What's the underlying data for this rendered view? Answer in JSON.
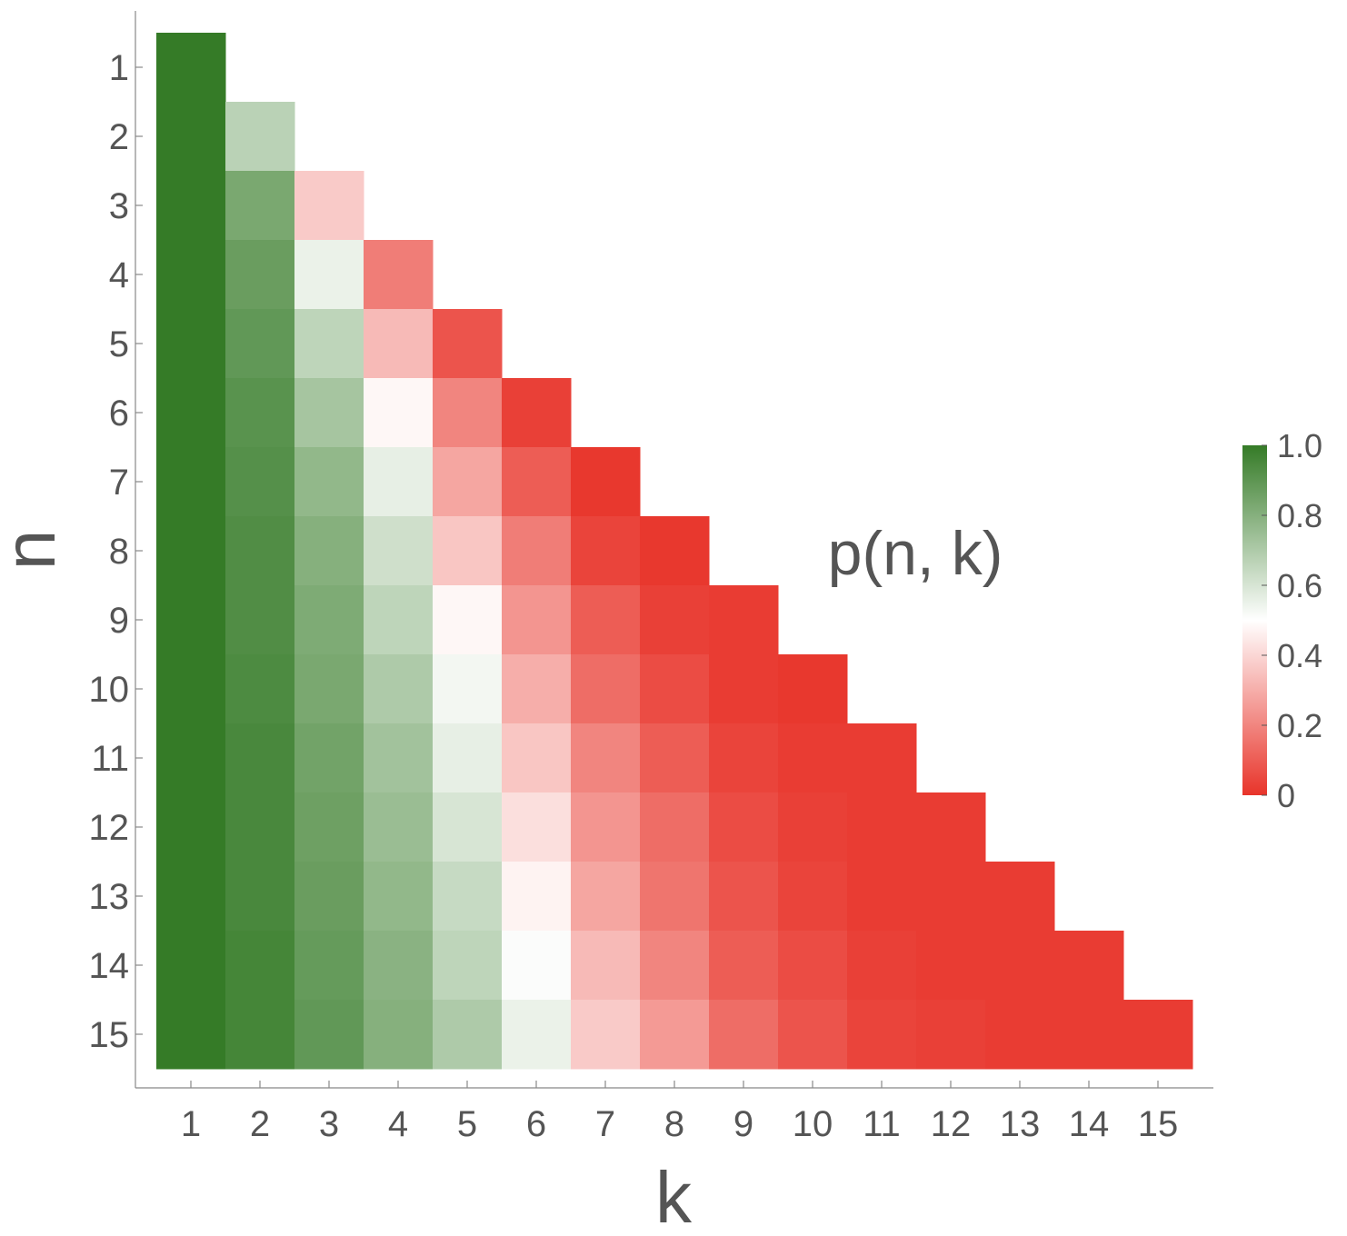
{
  "chart_data": {
    "type": "heatmap",
    "title": "",
    "xlabel": "k",
    "ylabel": "n",
    "annotation": "p(n, k)",
    "x": [
      1,
      2,
      3,
      4,
      5,
      6,
      7,
      8,
      9,
      10,
      11,
      12,
      13,
      14,
      15
    ],
    "y": [
      1,
      2,
      3,
      4,
      5,
      6,
      7,
      8,
      9,
      10,
      11,
      12,
      13,
      14,
      15
    ],
    "x_tick_labels": [
      "1",
      "2",
      "3",
      "4",
      "5",
      "6",
      "7",
      "8",
      "9",
      "10",
      "11",
      "12",
      "13",
      "14",
      "15"
    ],
    "y_tick_labels": [
      "1",
      "2",
      "3",
      "4",
      "5",
      "6",
      "7",
      "8",
      "9",
      "10",
      "11",
      "12",
      "13",
      "14",
      "15"
    ],
    "values": [
      [
        1.0
      ],
      [
        1.0,
        0.67
      ],
      [
        1.0,
        0.83,
        0.37
      ],
      [
        1.0,
        0.87,
        0.55,
        0.18
      ],
      [
        1.0,
        0.89,
        0.66,
        0.33,
        0.08
      ],
      [
        1.0,
        0.91,
        0.72,
        0.48,
        0.2,
        0.03
      ],
      [
        1.0,
        0.92,
        0.77,
        0.56,
        0.28,
        0.1,
        0.01
      ],
      [
        1.0,
        0.93,
        0.8,
        0.62,
        0.36,
        0.18,
        0.04,
        0.01
      ],
      [
        1.0,
        0.93,
        0.82,
        0.66,
        0.48,
        0.24,
        0.1,
        0.03,
        0.02
      ],
      [
        1.0,
        0.94,
        0.83,
        0.7,
        0.53,
        0.3,
        0.14,
        0.06,
        0.02,
        0.01
      ],
      [
        1.0,
        0.95,
        0.85,
        0.73,
        0.56,
        0.36,
        0.2,
        0.1,
        0.04,
        0.02,
        0.02
      ],
      [
        1.0,
        0.95,
        0.86,
        0.75,
        0.6,
        0.42,
        0.24,
        0.14,
        0.06,
        0.03,
        0.02,
        0.02
      ],
      [
        1.0,
        0.95,
        0.87,
        0.77,
        0.64,
        0.47,
        0.28,
        0.16,
        0.08,
        0.04,
        0.02,
        0.02,
        0.02
      ],
      [
        1.0,
        0.96,
        0.88,
        0.79,
        0.66,
        0.51,
        0.33,
        0.2,
        0.1,
        0.06,
        0.03,
        0.02,
        0.02,
        0.02
      ],
      [
        1.0,
        0.96,
        0.89,
        0.8,
        0.7,
        0.55,
        0.37,
        0.25,
        0.14,
        0.08,
        0.04,
        0.03,
        0.02,
        0.02,
        0.02
      ]
    ],
    "colorbar": {
      "min": 0,
      "max": 1,
      "ticks": [
        0,
        0.2,
        0.4,
        0.6,
        0.8,
        1.0
      ],
      "tick_labels": [
        "0",
        "0.2",
        "0.4",
        "0.6",
        "0.8",
        "1.0"
      ],
      "colors": {
        "low": "#e8342a",
        "mid": "#ffffff",
        "high": "#357b27"
      }
    },
    "grid": false
  }
}
